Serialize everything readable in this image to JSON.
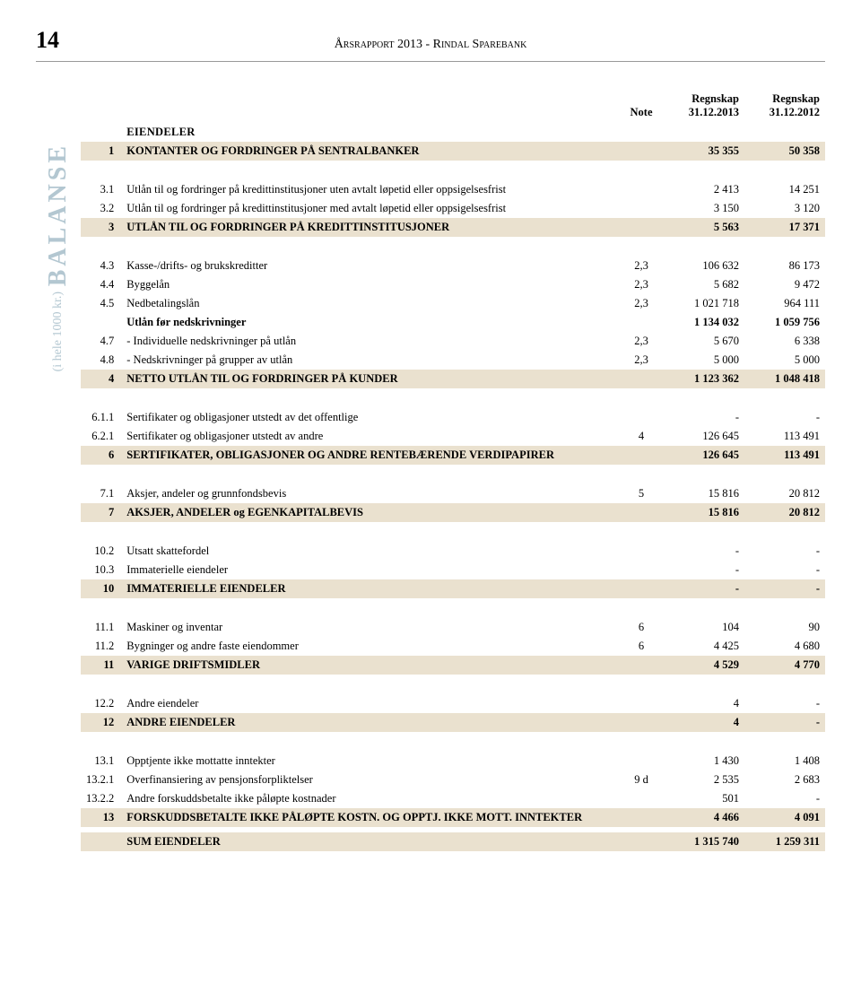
{
  "page_number": "14",
  "report_title": "Årsrapport 2013 - Rindal Sparebank",
  "side_label_main": "BALANSE",
  "side_label_sub": "(i hele 1000 kr.)",
  "columns": {
    "note": "Note",
    "c1_line1": "Regnskap",
    "c1_line2": "31.12.2013",
    "c2_line1": "Regnskap",
    "c2_line2": "31.12.2012"
  },
  "eiendeler_label": "EIENDELER",
  "rows": [
    {
      "idx": "1",
      "label": "KONTANTER OG FORDRINGER PÅ SENTRALBANKER",
      "note": "",
      "v1": "35 355",
      "v2": "50 358",
      "shaded": true
    },
    {
      "spacer": true
    },
    {
      "idx": "3.1",
      "label": "Utlån til og fordringer på kredittinstitusjoner uten avtalt løpetid eller oppsigelsesfrist",
      "note": "",
      "v1": "2 413",
      "v2": "14 251"
    },
    {
      "idx": "3.2",
      "label": "Utlån til og fordringer på kredittinstitusjoner med avtalt løpetid eller oppsigelsesfrist",
      "note": "",
      "v1": "3 150",
      "v2": "3 120"
    },
    {
      "idx": "3",
      "label": "UTLÅN TIL OG FORDRINGER PÅ KREDITTINSTITUSJONER",
      "note": "",
      "v1": "5 563",
      "v2": "17 371",
      "shaded": true
    },
    {
      "spacer": true
    },
    {
      "idx": "4.3",
      "label": "Kasse-/drifts- og brukskreditter",
      "note": "2,3",
      "v1": "106 632",
      "v2": "86 173"
    },
    {
      "idx": "4.4",
      "label": "Byggelån",
      "note": "2,3",
      "v1": "5 682",
      "v2": "9 472"
    },
    {
      "idx": "4.5",
      "label": "Nedbetalingslån",
      "note": "2,3",
      "v1": "1 021 718",
      "v2": "964 111"
    },
    {
      "idx": "",
      "label": "Utlån før nedskrivninger",
      "note": "",
      "v1": "1 134 032",
      "v2": "1 059 756",
      "bold": true
    },
    {
      "idx": "4.7",
      "label": "- Individuelle nedskrivninger på utlån",
      "note": "2,3",
      "v1": "5 670",
      "v2": "6 338"
    },
    {
      "idx": "4.8",
      "label": "- Nedskrivninger på grupper av utlån",
      "note": "2,3",
      "v1": "5 000",
      "v2": "5 000"
    },
    {
      "idx": "4",
      "label": "NETTO UTLÅN TIL OG FORDRINGER PÅ KUNDER",
      "note": "",
      "v1": "1 123 362",
      "v2": "1 048 418",
      "shaded": true
    },
    {
      "spacer": true
    },
    {
      "idx": "6.1.1",
      "label": "Sertifikater og obligasjoner utstedt av det offentlige",
      "note": "",
      "v1": "-",
      "v2": "-"
    },
    {
      "idx": "6.2.1",
      "label": "Sertifikater og obligasjoner utstedt av andre",
      "note": "4",
      "v1": "126 645",
      "v2": "113 491"
    },
    {
      "idx": "6",
      "label": "SERTIFIKATER, OBLIGASJONER OG ANDRE RENTEBÆRENDE VERDIPAPIRER",
      "note": "",
      "v1": "126 645",
      "v2": "113 491",
      "shaded": true
    },
    {
      "spacer": true
    },
    {
      "idx": "7.1",
      "label": "Aksjer, andeler og grunnfondsbevis",
      "note": "5",
      "v1": "15 816",
      "v2": "20 812"
    },
    {
      "idx": "7",
      "label": "AKSJER, ANDELER og EGENKAPITALBEVIS",
      "note": "",
      "v1": "15 816",
      "v2": "20 812",
      "shaded": true
    },
    {
      "spacer": true
    },
    {
      "idx": "10.2",
      "label": "Utsatt skattefordel",
      "note": "",
      "v1": "-",
      "v2": "-"
    },
    {
      "idx": "10.3",
      "label": "Immaterielle eiendeler",
      "note": "",
      "v1": "-",
      "v2": "-"
    },
    {
      "idx": "10",
      "label": "IMMATERIELLE EIENDELER",
      "note": "",
      "v1": "-",
      "v2": "-",
      "shaded": true
    },
    {
      "spacer": true
    },
    {
      "idx": "11.1",
      "label": "Maskiner og inventar",
      "note": "6",
      "v1": "104",
      "v2": "90"
    },
    {
      "idx": "11.2",
      "label": "Bygninger og andre faste eiendommer",
      "note": "6",
      "v1": "4 425",
      "v2": "4 680"
    },
    {
      "idx": "11",
      "label": "VARIGE DRIFTSMIDLER",
      "note": "",
      "v1": "4 529",
      "v2": "4 770",
      "shaded": true
    },
    {
      "spacer": true
    },
    {
      "idx": "12.2",
      "label": "Andre eiendeler",
      "note": "",
      "v1": "4",
      "v2": "-"
    },
    {
      "idx": "12",
      "label": "ANDRE EIENDELER",
      "note": "",
      "v1": "4",
      "v2": "-",
      "shaded": true
    },
    {
      "spacer": true
    },
    {
      "idx": "13.1",
      "label": "Opptjente ikke mottatte inntekter",
      "note": "",
      "v1": "1 430",
      "v2": "1 408"
    },
    {
      "idx": "13.2.1",
      "label": "Overfinansiering av pensjonsforpliktelser",
      "note": "9 d",
      "v1": "2 535",
      "v2": "2 683"
    },
    {
      "idx": "13.2.2",
      "label": "Andre forskuddsbetalte ikke påløpte kostnader",
      "note": "",
      "v1": "501",
      "v2": "-"
    },
    {
      "idx": "13",
      "label": "FORSKUDDSBETALTE IKKE PÅLØPTE KOSTN. OG OPPTJ. IKKE MOTT. INNTEKTER",
      "note": "",
      "v1": "4 466",
      "v2": "4 091",
      "shaded": true
    },
    {
      "small_spacer": true
    },
    {
      "idx": "",
      "label": "SUM EIENDELER",
      "note": "",
      "v1": "1 315 740",
      "v2": "1 259 311",
      "shaded": true
    }
  ]
}
